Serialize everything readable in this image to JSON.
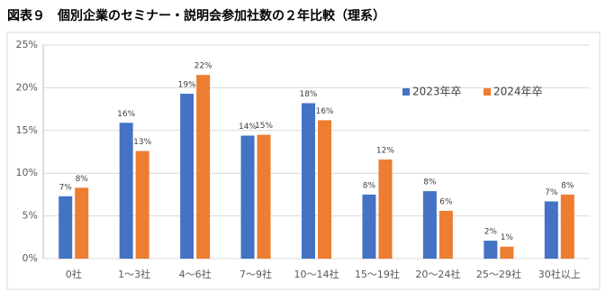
{
  "chart_data": {
    "type": "bar",
    "title": "図表９　個別企業のセミナー・説明会参加社数の２年比較（理系）",
    "categories": [
      "0社",
      "1～3社",
      "4～6社",
      "7～9社",
      "10～14社",
      "15～19社",
      "20～24社",
      "25～29社",
      "30社以上"
    ],
    "series": [
      {
        "name": "2023年卒",
        "color": "#4472c4",
        "values": [
          7.3,
          15.9,
          19.3,
          14.4,
          18.2,
          7.5,
          7.9,
          2.1,
          6.7
        ],
        "value_labels": [
          "7%",
          "16%",
          "19%",
          "14%",
          "18%",
          "8%",
          "8%",
          "2%",
          "7%"
        ]
      },
      {
        "name": "2024年卒",
        "color": "#ed7d31",
        "values": [
          8.3,
          12.6,
          21.5,
          14.5,
          16.2,
          11.6,
          5.6,
          1.4,
          7.5
        ],
        "value_labels": [
          "8%",
          "13%",
          "22%",
          "15%",
          "16%",
          "12%",
          "6%",
          "1%",
          "8%"
        ]
      }
    ],
    "ylim": [
      0,
      25
    ],
    "yticks": [
      {
        "value": 0,
        "label": "0%"
      },
      {
        "value": 5,
        "label": "5%"
      },
      {
        "value": 10,
        "label": "10%"
      },
      {
        "value": 15,
        "label": "15%"
      },
      {
        "value": 20,
        "label": "20%"
      },
      {
        "value": 25,
        "label": "25%"
      }
    ],
    "grid": true,
    "legend": "upper-right"
  }
}
